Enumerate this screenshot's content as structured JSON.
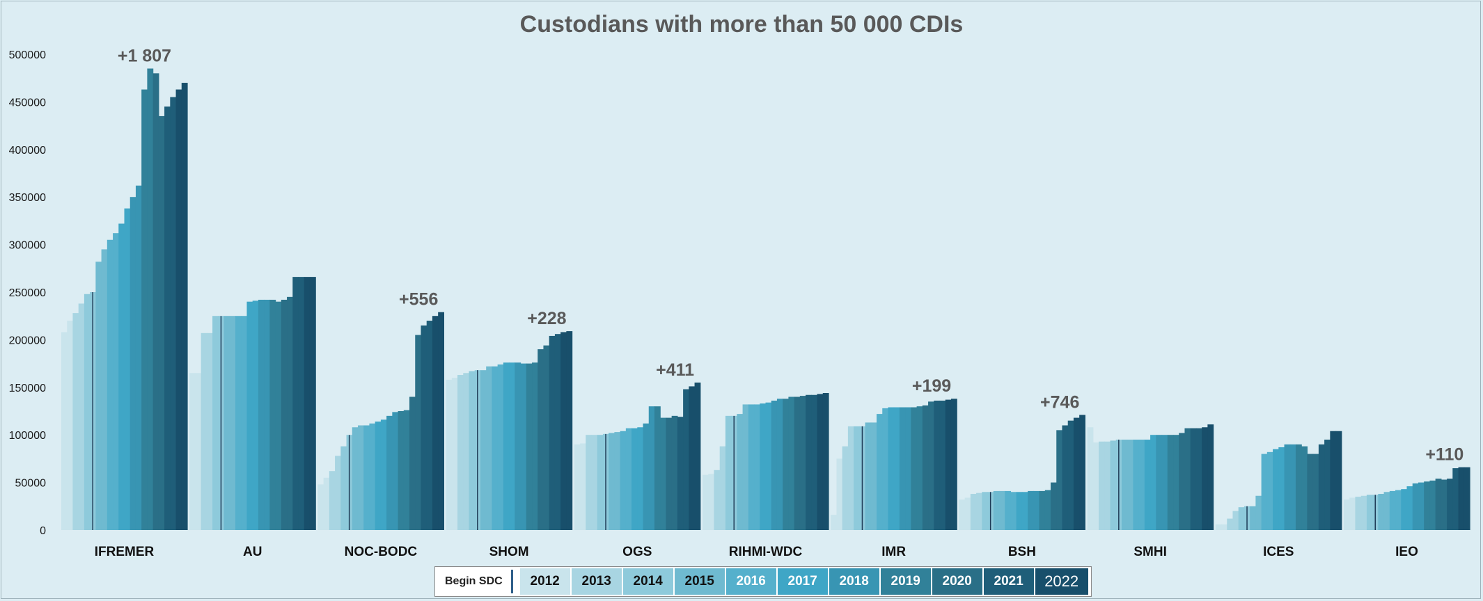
{
  "chart_data": {
    "type": "bar",
    "title": "Custodians with more than 50 000 CDIs",
    "ylim": [
      0,
      500000
    ],
    "yticks": [
      0,
      50000,
      100000,
      150000,
      200000,
      250000,
      300000,
      350000,
      400000,
      450000,
      500000
    ],
    "legend_position": "bottom",
    "legend_title": "Begin SDC",
    "years": [
      "2012",
      "2013",
      "2014",
      "2015",
      "2016",
      "2017",
      "2018",
      "2019",
      "2020",
      "2021",
      "2022"
    ],
    "year_colors": [
      "#c9e4ec",
      "#a8d5e2",
      "#8ecadb",
      "#6fbad0",
      "#55b0cc",
      "#3fa6c6",
      "#3895b3",
      "#318199",
      "#2a6f87",
      "#1f5e79",
      "#184f6b"
    ],
    "begin_sdc_year_index": 2,
    "custodians": [
      {
        "name": "IFREMER",
        "annotation": "+1 807",
        "values": [
          208000,
          220000,
          228000,
          238000,
          248000,
          250000,
          282000,
          295000,
          305000,
          312000,
          322000,
          338000,
          350000,
          362000,
          463000,
          485000,
          480000,
          435000,
          445000,
          455000,
          463000,
          470000
        ]
      },
      {
        "name": "AU",
        "annotation": "",
        "values": [
          165000,
          165000,
          207000,
          207000,
          225000,
          225000,
          225000,
          225000,
          225000,
          225000,
          240000,
          241000,
          242000,
          242000,
          242000,
          240000,
          242000,
          245000,
          266000,
          266000,
          266000,
          266000
        ]
      },
      {
        "name": "NOC-BODC",
        "annotation": "+556",
        "values": [
          48000,
          55000,
          62000,
          78000,
          88000,
          100000,
          108000,
          110000,
          110000,
          112000,
          114000,
          116000,
          120000,
          124000,
          125000,
          126000,
          140000,
          205000,
          215000,
          220000,
          225000,
          229000
        ]
      },
      {
        "name": "SHOM",
        "annotation": "+228",
        "values": [
          158000,
          160000,
          163000,
          165000,
          167000,
          168000,
          168000,
          172000,
          172000,
          174000,
          176000,
          176000,
          176000,
          175000,
          175000,
          176000,
          190000,
          194000,
          204000,
          206000,
          208000,
          209000
        ]
      },
      {
        "name": "OGS",
        "annotation": "+411",
        "values": [
          90000,
          91000,
          100000,
          100000,
          100000,
          101000,
          102000,
          103000,
          104000,
          107000,
          107000,
          108000,
          112000,
          130000,
          130000,
          118000,
          118000,
          120000,
          119000,
          148000,
          151000,
          155000
        ]
      },
      {
        "name": "RIHMI-WDC",
        "annotation": "",
        "values": [
          58000,
          59000,
          63000,
          88000,
          120000,
          120000,
          122000,
          132000,
          132000,
          132000,
          133000,
          134000,
          136000,
          138000,
          138000,
          140000,
          140000,
          141000,
          142000,
          142000,
          143000,
          144000
        ]
      },
      {
        "name": "IMR",
        "annotation": "+199",
        "values": [
          16000,
          75000,
          88000,
          109000,
          109000,
          109000,
          113000,
          113000,
          122000,
          128000,
          129000,
          129000,
          129000,
          129000,
          129000,
          130000,
          131000,
          135000,
          136000,
          136000,
          137000,
          138000
        ]
      },
      {
        "name": "BSH",
        "annotation": "+746",
        "values": [
          32000,
          34000,
          38000,
          39000,
          40000,
          40000,
          41000,
          41000,
          41000,
          40000,
          40000,
          40000,
          41000,
          41000,
          41000,
          42000,
          50000,
          105000,
          110000,
          115000,
          118000,
          121000
        ]
      },
      {
        "name": "SMHI",
        "annotation": "",
        "values": [
          108000,
          92000,
          93000,
          93000,
          94000,
          95000,
          95000,
          95000,
          95000,
          95000,
          95000,
          100000,
          100000,
          100000,
          100000,
          100000,
          102000,
          107000,
          107000,
          107000,
          108000,
          111000
        ]
      },
      {
        "name": "ICES",
        "annotation": "",
        "values": [
          6000,
          6000,
          12000,
          20000,
          24000,
          25000,
          25000,
          36000,
          80000,
          82000,
          85000,
          87000,
          90000,
          90000,
          90000,
          88000,
          80000,
          80000,
          90000,
          95000,
          104000,
          104000
        ]
      },
      {
        "name": "IEO",
        "annotation": "+110",
        "values": [
          32000,
          34000,
          35000,
          36000,
          37000,
          37000,
          38000,
          40000,
          41000,
          42000,
          43000,
          46000,
          49000,
          50000,
          51000,
          52000,
          54000,
          53000,
          54000,
          65000,
          66000,
          66000
        ]
      }
    ]
  }
}
